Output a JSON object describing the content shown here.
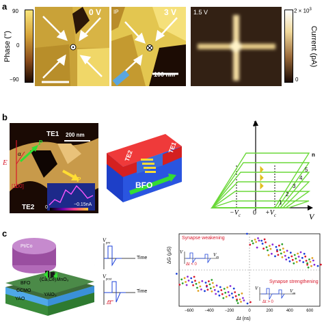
{
  "panels": {
    "a": {
      "label": "a",
      "colorbar_phase": {
        "label": "Phase (°)",
        "max": "90",
        "zero": "0",
        "min": "−90"
      },
      "image_1": {
        "label": "0 V"
      },
      "image_2": {
        "label": "3 V",
        "tag": "IP",
        "scalebar": "100 nm"
      },
      "image_3": {
        "label": "1.5 V"
      },
      "colorbar_current": {
        "label": "Current (pA)",
        "max": "2 × 10",
        "max_exp": "3",
        "zero": "0"
      }
    },
    "b": {
      "label": "b",
      "micrograph": {
        "te1": "TE1",
        "te2": "TE2",
        "scalebar": "200 nm",
        "e_label": "E",
        "alpha": "α",
        "p1": "P",
        "p2": "P",
        "direction": "[100]",
        "inset_scale": "0",
        "inset_value": "−0.15nA"
      },
      "device": {
        "te1": "TE1",
        "te2": "TE2",
        "bfo": "BFO"
      },
      "iv": {
        "ylabel": "I",
        "xlabel": "V",
        "neg_vc": "−V",
        "pos_vc": "+V",
        "vc_sub": "c",
        "zero": "0",
        "loop_labels": [
          "1",
          "2",
          "3",
          "4",
          "5",
          "n"
        ]
      }
    },
    "c": {
      "label": "c",
      "stack": {
        "top": "Pt/Co",
        "bfo": "BFO",
        "ccmo": "CCMO",
        "ccmo_formula": "(Ca,Ce)MnO₃",
        "yao": "YAO",
        "yao_formula": "YAlO₃"
      },
      "pulses": {
        "vpre": "V",
        "vpre_sub": "pre",
        "vpost": "V",
        "vpost_sub": "post",
        "time1": "Time",
        "time2": "Time",
        "dt": "Δt"
      },
      "plot": {
        "ylabel": "ΔG (μS)",
        "xlabel": "Δt (ns)",
        "xticks": [
          "−600",
          "−400",
          "−200",
          "0",
          "200",
          "400",
          "600"
        ],
        "weakening": "Synapse weakening",
        "strengthening": "Synapse strengthening",
        "inset1_v": "V",
        "inset1_vm": "V",
        "inset1_vm_sub": "m",
        "inset1_dt": "Δt < 0",
        "inset2_v": "V",
        "inset2_vm": "V",
        "inset2_vm_sub": "m",
        "inset2_dt": "Δt > 0"
      }
    }
  },
  "chart_data": {
    "type": "scatter",
    "xlabel": "Δt (ns)",
    "ylabel": "ΔG (μS)",
    "xlim": [
      -700,
      700
    ],
    "xticks": [
      -600,
      -400,
      -200,
      0,
      200,
      400,
      600
    ],
    "series": [
      {
        "x": [
          -650,
          -600,
          -550,
          -500,
          -450,
          -400,
          -350,
          -300,
          -250,
          -200,
          -150,
          -100,
          -50
        ],
        "y": [
          -0.3,
          -0.35,
          -0.4,
          -0.45,
          -0.5,
          -0.55,
          -0.6,
          -0.65,
          -0.7,
          -0.78,
          -0.85,
          -0.9,
          -1.0
        ]
      },
      {
        "x": [
          50,
          100,
          150,
          200,
          250,
          300,
          350,
          400,
          450,
          500,
          550,
          600,
          650
        ],
        "y": [
          1.0,
          0.9,
          0.82,
          0.74,
          0.66,
          0.58,
          0.52,
          0.46,
          0.4,
          0.35,
          0.3,
          0.26,
          0.22
        ]
      }
    ]
  }
}
